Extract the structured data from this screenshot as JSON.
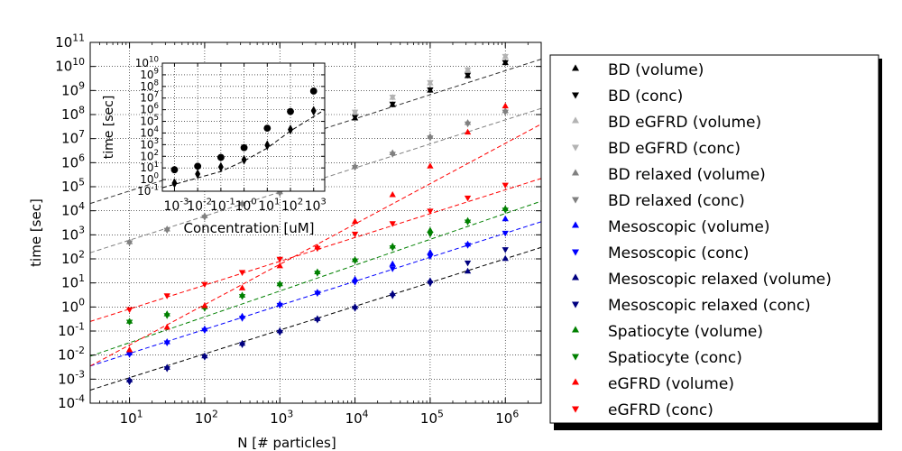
{
  "chart_data": {
    "type": "scatter",
    "xlabel": "N [# particles]",
    "ylabel": "time [sec]",
    "x_scale": "log",
    "y_scale": "log",
    "xlim": [
      3,
      3000000
    ],
    "ylim": [
      0.0001,
      100000000000
    ],
    "grid": true,
    "legend_position": "right",
    "x_ticks": [
      {
        "value": 10,
        "base": "10",
        "exp": "1"
      },
      {
        "value": 100,
        "base": "10",
        "exp": "2"
      },
      {
        "value": 1000,
        "base": "10",
        "exp": "3"
      },
      {
        "value": 10000,
        "base": "10",
        "exp": "4"
      },
      {
        "value": 100000,
        "base": "10",
        "exp": "5"
      },
      {
        "value": 1000000,
        "base": "10",
        "exp": "6"
      }
    ],
    "y_ticks": [
      {
        "value": 0.0001,
        "base": "10",
        "exp": "-4"
      },
      {
        "value": 0.001,
        "base": "10",
        "exp": "-3"
      },
      {
        "value": 0.01,
        "base": "10",
        "exp": "-2"
      },
      {
        "value": 0.1,
        "base": "10",
        "exp": "-1"
      },
      {
        "value": 1,
        "base": "10",
        "exp": "0"
      },
      {
        "value": 10,
        "base": "10",
        "exp": "1"
      },
      {
        "value": 100,
        "base": "10",
        "exp": "2"
      },
      {
        "value": 1000,
        "base": "10",
        "exp": "3"
      },
      {
        "value": 10000,
        "base": "10",
        "exp": "4"
      },
      {
        "value": 100000,
        "base": "10",
        "exp": "5"
      },
      {
        "value": 1000000,
        "base": "10",
        "exp": "6"
      },
      {
        "value": 10000000,
        "base": "10",
        "exp": "7"
      },
      {
        "value": 100000000,
        "base": "10",
        "exp": "8"
      },
      {
        "value": 1000000000,
        "base": "10",
        "exp": "9"
      },
      {
        "value": 10000000000,
        "base": "10",
        "exp": "10"
      },
      {
        "value": 100000000000,
        "base": "10",
        "exp": "11"
      }
    ],
    "series": [
      {
        "name": "BD (volume)",
        "marker": "triangle-up",
        "color": "#000000",
        "points": [
          [
            10000,
            70000000
          ],
          [
            31600,
            250000000
          ],
          [
            100000,
            1000000000
          ],
          [
            316000,
            4000000000
          ],
          [
            1000000,
            14000000000
          ]
        ]
      },
      {
        "name": "BD (conc)",
        "marker": "triangle-down",
        "color": "#000000",
        "points": [
          [
            10000,
            80000000
          ],
          [
            31600,
            280000000
          ],
          [
            100000,
            1100000000
          ],
          [
            316000,
            4500000000
          ],
          [
            1000000,
            15000000000
          ]
        ]
      },
      {
        "name": "BD eGFRD (volume)",
        "marker": "triangle-up",
        "color": "#b3b3b3",
        "points": [
          [
            10000,
            120000000
          ],
          [
            31600,
            500000000
          ],
          [
            100000,
            2000000000
          ],
          [
            316000,
            7000000000
          ],
          [
            1000000,
            25000000000
          ]
        ]
      },
      {
        "name": "BD eGFRD (conc)",
        "marker": "triangle-down",
        "color": "#b3b3b3",
        "points": [
          [
            10000,
            130000000
          ],
          [
            31600,
            550000000
          ],
          [
            100000,
            2200000000
          ],
          [
            316000,
            7500000000
          ],
          [
            1000000,
            27000000000
          ]
        ]
      },
      {
        "name": "BD relaxed (volume)",
        "marker": "triangle-up",
        "color": "#808080",
        "points": [
          [
            10,
            500
          ],
          [
            31.6,
            1700
          ],
          [
            100,
            6000
          ],
          [
            316,
            20000
          ],
          [
            1000,
            60000
          ],
          [
            10000,
            700000
          ],
          [
            31600,
            2500000
          ],
          [
            100000,
            12000000
          ],
          [
            316000,
            45000000
          ],
          [
            1000000,
            140000000
          ]
        ]
      },
      {
        "name": "BD relaxed (conc)",
        "marker": "triangle-down",
        "color": "#808080",
        "points": [
          [
            10,
            480
          ],
          [
            31.6,
            1600
          ],
          [
            100,
            5500
          ],
          [
            316,
            19000
          ],
          [
            1000,
            55000
          ],
          [
            10000,
            650000
          ],
          [
            31600,
            2300000
          ],
          [
            100000,
            11000000
          ],
          [
            316000,
            42000000
          ],
          [
            1000000,
            130000000
          ]
        ]
      },
      {
        "name": "Mesoscopic (volume)",
        "marker": "triangle-up",
        "color": "#0000ff",
        "points": [
          [
            10,
            0.012
          ],
          [
            31.6,
            0.035
          ],
          [
            100,
            0.12
          ],
          [
            316,
            0.4
          ],
          [
            1000,
            1.3
          ],
          [
            3160,
            4
          ],
          [
            10000,
            14
          ],
          [
            31600,
            60
          ],
          [
            100000,
            180
          ],
          [
            316000,
            400
          ],
          [
            1000000,
            4500
          ]
        ]
      },
      {
        "name": "Mesoscopic (conc)",
        "marker": "triangle-down",
        "color": "#0000ff",
        "points": [
          [
            10,
            0.011
          ],
          [
            31.6,
            0.033
          ],
          [
            100,
            0.11
          ],
          [
            316,
            0.35
          ],
          [
            1000,
            1.2
          ],
          [
            3160,
            3.8
          ],
          [
            10000,
            11
          ],
          [
            31600,
            40
          ],
          [
            100000,
            130
          ],
          [
            316000,
            380
          ],
          [
            1000000,
            1200
          ]
        ]
      },
      {
        "name": "Mesoscopic relaxed (volume)",
        "marker": "triangle-up",
        "color": "#000080",
        "points": [
          [
            10,
            0.0009
          ],
          [
            31.6,
            0.003
          ],
          [
            100,
            0.009
          ],
          [
            316,
            0.03
          ],
          [
            1000,
            0.1
          ],
          [
            3160,
            0.32
          ],
          [
            10000,
            1
          ],
          [
            31600,
            3.5
          ],
          [
            100000,
            12
          ],
          [
            316000,
            30
          ],
          [
            1000000,
            100
          ]
        ]
      },
      {
        "name": "Mesoscopic relaxed (conc)",
        "marker": "triangle-down",
        "color": "#000080",
        "points": [
          [
            10,
            0.0008
          ],
          [
            31.6,
            0.0028
          ],
          [
            100,
            0.0085
          ],
          [
            316,
            0.028
          ],
          [
            1000,
            0.09
          ],
          [
            3160,
            0.3
          ],
          [
            10000,
            0.9
          ],
          [
            31600,
            3
          ],
          [
            100000,
            10
          ],
          [
            316000,
            70
          ],
          [
            1000000,
            250
          ]
        ]
      },
      {
        "name": "Spatiocyte (volume)",
        "marker": "triangle-up",
        "color": "#008000",
        "points": [
          [
            10,
            0.25
          ],
          [
            31.6,
            0.5
          ],
          [
            100,
            1
          ],
          [
            316,
            3
          ],
          [
            1000,
            9
          ],
          [
            3160,
            28
          ],
          [
            10000,
            90
          ],
          [
            31600,
            330
          ],
          [
            100000,
            1500
          ],
          [
            316000,
            3800
          ],
          [
            1000000,
            12000
          ]
        ]
      },
      {
        "name": "Spatiocyte (conc)",
        "marker": "triangle-down",
        "color": "#008000",
        "points": [
          [
            10,
            0.24
          ],
          [
            31.6,
            0.45
          ],
          [
            100,
            0.9
          ],
          [
            316,
            2.8
          ],
          [
            1000,
            8.5
          ],
          [
            3160,
            26
          ],
          [
            10000,
            85
          ],
          [
            31600,
            300
          ],
          [
            100000,
            1100
          ],
          [
            316000,
            3500
          ],
          [
            1000000,
            11000
          ]
        ]
      },
      {
        "name": "eGFRD (volume)",
        "marker": "triangle-up",
        "color": "#ff0000",
        "points": [
          [
            10,
            0.016
          ],
          [
            31.6,
            0.14
          ],
          [
            100,
            1.1
          ],
          [
            316,
            6
          ],
          [
            1000,
            50
          ],
          [
            3160,
            300
          ],
          [
            10000,
            3500
          ],
          [
            31600,
            45000
          ],
          [
            100000,
            700000
          ],
          [
            316000,
            18000000
          ],
          [
            1000000,
            220000000
          ]
        ]
      },
      {
        "name": "eGFRD (conc)",
        "marker": "triangle-down",
        "color": "#ff0000",
        "points": [
          [
            10,
            0.8
          ],
          [
            31.6,
            3
          ],
          [
            100,
            9
          ],
          [
            316,
            28
          ],
          [
            1000,
            100
          ],
          [
            3160,
            280
          ],
          [
            10000,
            1100
          ],
          [
            31600,
            3000
          ],
          [
            100000,
            10000
          ],
          [
            316000,
            35000
          ],
          [
            1000000,
            120000
          ]
        ]
      }
    ],
    "fit_lines": [
      {
        "color": "#000000",
        "from": [
          3,
          0.00035
        ],
        "to": [
          3000000,
          300
        ]
      },
      {
        "color": "#0000ff",
        "from": [
          3,
          0.0035
        ],
        "to": [
          3000000,
          3500
        ]
      },
      {
        "color": "#008000",
        "from": [
          3,
          0.009
        ],
        "to": [
          3000000,
          25000
        ]
      },
      {
        "color": "#ff0000",
        "from": [
          3,
          0.25
        ],
        "to": [
          3000000,
          220000
        ]
      },
      {
        "color": "#ff0000",
        "from": [
          3,
          0.0035
        ],
        "to": [
          3000000,
          40000000
        ]
      },
      {
        "color": "#808080",
        "from": [
          3,
          180
        ],
        "to": [
          3000000,
          180000000
        ]
      },
      {
        "color": "#333333",
        "from": [
          3,
          20000
        ],
        "to": [
          3000000,
          20000000000
        ]
      }
    ],
    "inset": {
      "xlabel": "Concentration [uM]",
      "ylabel": "time [sec]",
      "x_scale": "log",
      "y_scale": "log",
      "xlim": [
        0.0003,
        3000
      ],
      "ylim": [
        0.1,
        10000000000
      ],
      "x_ticks": [
        {
          "value": 0.001,
          "base": "10",
          "exp": "-3"
        },
        {
          "value": 0.01,
          "base": "10",
          "exp": "-2"
        },
        {
          "value": 0.1,
          "base": "10",
          "exp": "-1"
        },
        {
          "value": 1,
          "base": "10",
          "exp": "0"
        },
        {
          "value": 10,
          "base": "10",
          "exp": "1"
        },
        {
          "value": 100,
          "base": "10",
          "exp": "2"
        },
        {
          "value": 1000,
          "base": "10",
          "exp": "3"
        }
      ],
      "y_ticks": [
        {
          "value": 0.1,
          "base": "10",
          "exp": "-1"
        },
        {
          "value": 1,
          "base": "10",
          "exp": "0"
        },
        {
          "value": 10,
          "base": "10",
          "exp": "1"
        },
        {
          "value": 100,
          "base": "10",
          "exp": "2"
        },
        {
          "value": 1000,
          "base": "10",
          "exp": "3"
        },
        {
          "value": 10000,
          "base": "10",
          "exp": "4"
        },
        {
          "value": 100000,
          "base": "10",
          "exp": "5"
        },
        {
          "value": 1000000,
          "base": "10",
          "exp": "6"
        },
        {
          "value": 10000000,
          "base": "10",
          "exp": "7"
        },
        {
          "value": 100000000,
          "base": "10",
          "exp": "8"
        },
        {
          "value": 1000000000,
          "base": "10",
          "exp": "9"
        },
        {
          "value": 10000000000,
          "base": "10",
          "exp": "10"
        }
      ],
      "series": [
        {
          "marker": "circle",
          "color": "#000000",
          "points": [
            [
              0.001,
              7
            ],
            [
              0.01,
              14
            ],
            [
              0.1,
              80
            ],
            [
              1,
              550
            ],
            [
              10,
              26000
            ],
            [
              100,
              700000
            ],
            [
              1000,
              40000000
            ]
          ]
        },
        {
          "marker": "diamond",
          "color": "#000000",
          "points": [
            [
              0.001,
              0.5
            ],
            [
              0.01,
              3
            ],
            [
              0.1,
              12
            ],
            [
              1,
              50
            ],
            [
              10,
              900
            ],
            [
              100,
              20000
            ],
            [
              1000,
              800000
            ]
          ]
        }
      ],
      "fit_line": {
        "color": "#000000",
        "points": [
          [
            0.0003,
            0.2
          ],
          [
            0.1,
            5
          ],
          [
            1,
            40
          ],
          [
            10,
            500
          ],
          [
            100,
            15000
          ],
          [
            3000,
            1000000
          ]
        ]
      }
    }
  }
}
